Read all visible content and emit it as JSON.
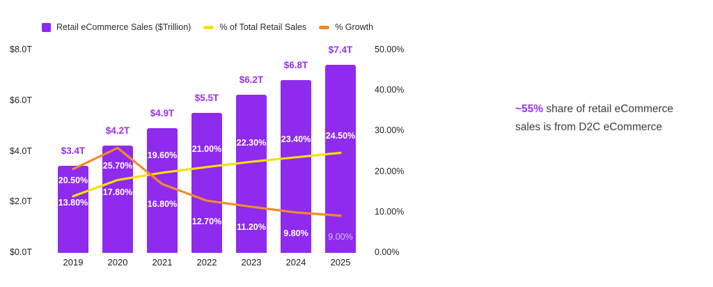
{
  "legend": {
    "items": [
      {
        "label": "Retail eCommerce Sales ($Trillion)",
        "color": "#8e2bee",
        "swatch": "square"
      },
      {
        "label": "% of Total Retail Sales",
        "color": "#f5e003",
        "swatch": "line"
      },
      {
        "label": "% Growth",
        "color": "#f28c28",
        "swatch": "line"
      }
    ]
  },
  "chart_data": {
    "type": "bar",
    "title": "",
    "categories": [
      "2019",
      "2020",
      "2021",
      "2022",
      "2023",
      "2024",
      "2025"
    ],
    "series": [
      {
        "name": "Retail eCommerce Sales ($Trillion)",
        "type": "bar",
        "axis": "left",
        "color": "#8e2bee",
        "values": [
          3.4,
          4.2,
          4.9,
          5.5,
          6.2,
          6.8,
          7.4
        ],
        "labels": [
          "$3.4T",
          "$4.2T",
          "$4.9T",
          "$5.5T",
          "$6.2T",
          "$6.8T",
          "$7.4T"
        ]
      },
      {
        "name": "% of Total Retail Sales",
        "type": "line",
        "axis": "right",
        "color": "#f5e003",
        "values": [
          13.8,
          17.8,
          19.6,
          21.0,
          22.3,
          23.4,
          24.5
        ],
        "labels": [
          "13.80%",
          "17.80%",
          "19.60%",
          "21.00%",
          "22.30%",
          "23.40%",
          "24.50%"
        ]
      },
      {
        "name": "% Growth",
        "type": "line",
        "axis": "right",
        "color": "#f28c28",
        "values": [
          20.5,
          25.7,
          16.8,
          12.7,
          11.2,
          9.8,
          9.0
        ],
        "labels": [
          "20.50%",
          "25.70%",
          "16.80%",
          "12.70%",
          "11.20%",
          "9.80%",
          "9.00%"
        ]
      }
    ],
    "left_axis": {
      "ticks": [
        "$8.0T",
        "$6.0T",
        "$4.0T",
        "$2.0T",
        "$0.0T"
      ],
      "range": [
        0,
        8
      ]
    },
    "right_axis": {
      "ticks": [
        "50.00%",
        "40.00%",
        "30.00%",
        "20.00%",
        "10.00%",
        "0.00%"
      ],
      "range": [
        0,
        50
      ]
    },
    "grid": false,
    "legend_position": "top"
  },
  "annotation": {
    "highlight": "~55%",
    "text": " share of retail eCommerce sales is from D2C eCommerce"
  },
  "colors": {
    "bar": "#8e2bee",
    "bar_value_label": "#9b2ff0",
    "share_line": "#f5e003",
    "growth_line": "#f28c28",
    "axis_text": "#1f1f1f",
    "annotation_highlight": "#9b2ff0",
    "annotation_text": "#3d3d3d"
  }
}
